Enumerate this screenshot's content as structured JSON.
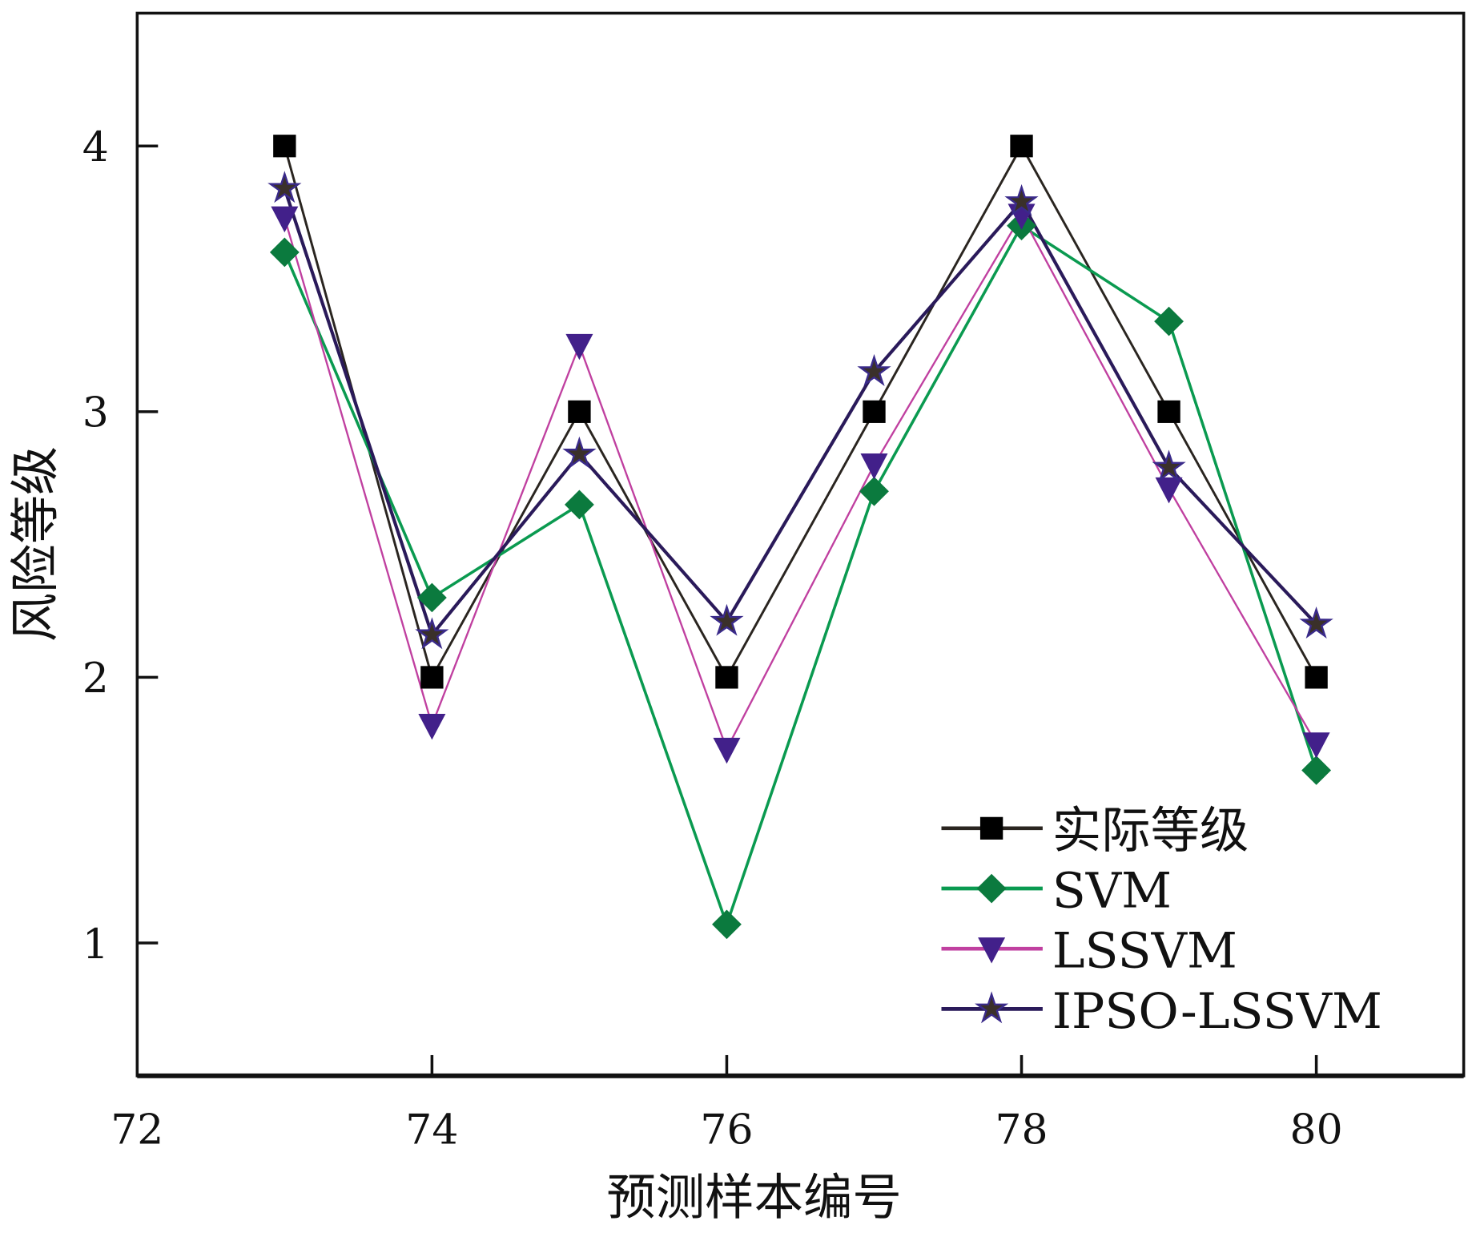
{
  "chart_data": {
    "type": "line",
    "title": "",
    "xlabel": "预测样本编号",
    "ylabel": "风险等级",
    "xlim": [
      72,
      81
    ],
    "ylim": [
      0.5,
      4.5
    ],
    "xticks": [
      72,
      74,
      76,
      78,
      80
    ],
    "yticks": [
      1,
      2,
      3,
      4
    ],
    "x": [
      73,
      74,
      75,
      76,
      77,
      78,
      79,
      80
    ],
    "grid": false,
    "legend_position": "bottom-right",
    "series": [
      {
        "name": "实际等级",
        "marker": "square",
        "line_color": "#2a2520",
        "marker_color": "#000000",
        "values": [
          4,
          2,
          3,
          2,
          3,
          4,
          3,
          2
        ]
      },
      {
        "name": "SVM",
        "marker": "diamond",
        "line_color": "#0a9a50",
        "marker_color": "#0b7a3e",
        "values": [
          3.6,
          2.3,
          2.65,
          1.07,
          2.7,
          3.7,
          3.34,
          1.65
        ]
      },
      {
        "name": "LSSVM",
        "marker": "triangle-down",
        "line_color": "#c040a0",
        "marker_color": "#42208a",
        "values": [
          3.73,
          1.82,
          3.25,
          1.73,
          2.8,
          3.74,
          2.71,
          1.75
        ]
      },
      {
        "name": "IPSO-LSSVM",
        "marker": "star",
        "line_color": "#2a1a5a",
        "marker_color": "#3a302a",
        "values": [
          3.84,
          2.16,
          2.84,
          2.21,
          3.15,
          3.79,
          2.79,
          2.2
        ]
      }
    ]
  }
}
